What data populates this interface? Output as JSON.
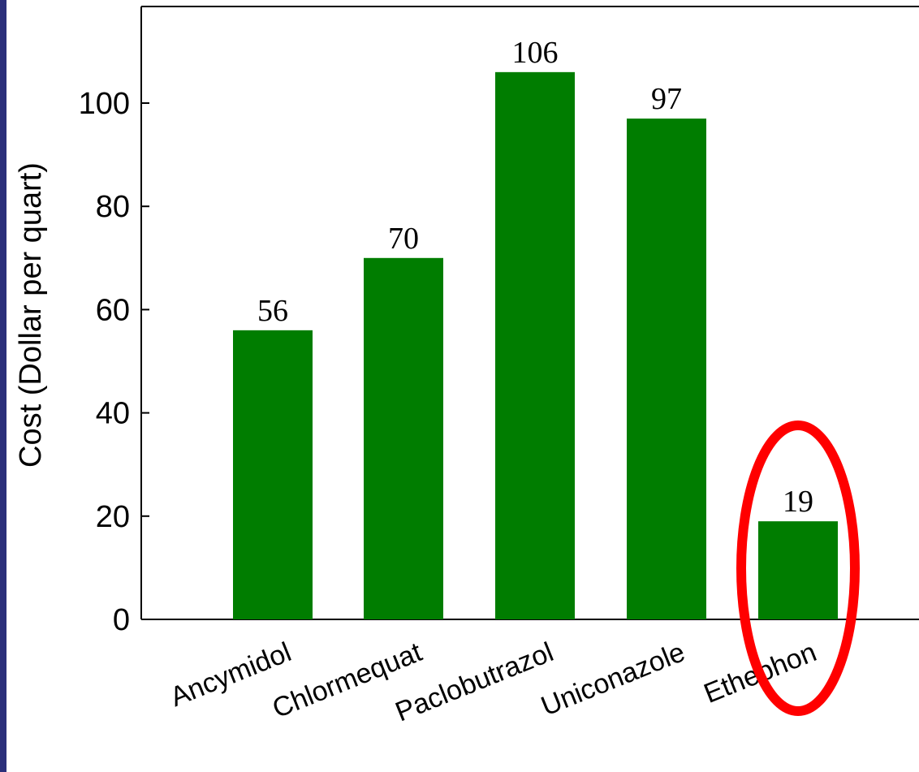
{
  "colors": {
    "bar": "#007d00",
    "highlight": "#ff0000",
    "side_strip": "#2b2f7a",
    "axis": "#000000"
  },
  "chart_data": {
    "type": "bar",
    "categories": [
      "Ancymidol",
      "Chlormequat",
      "Paclobutrazol",
      "Uniconazole",
      "Ethephon"
    ],
    "values": [
      56,
      70,
      106,
      97,
      19
    ],
    "data_labels": [
      "56",
      "70",
      "106",
      "97",
      "19"
    ],
    "title": "",
    "xlabel": "",
    "ylabel": "Cost (Dollar per quart)",
    "ylim": [
      0,
      120
    ],
    "yticks": [
      0,
      20,
      40,
      60,
      80,
      100
    ],
    "grid": false,
    "legend": "none",
    "highlighted_category": "Ethephon"
  }
}
